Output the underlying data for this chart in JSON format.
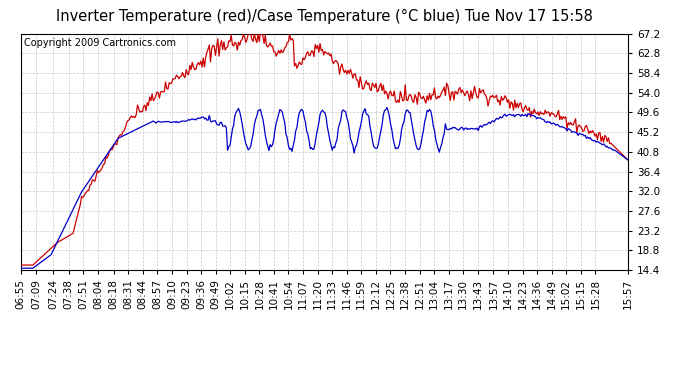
{
  "title": "Inverter Temperature (red)/Case Temperature (°C blue) Tue Nov 17 15:58",
  "copyright": "Copyright 2009 Cartronics.com",
  "ylim": [
    14.4,
    67.2
  ],
  "yticks": [
    14.4,
    18.8,
    23.2,
    27.6,
    32.0,
    36.4,
    40.8,
    45.2,
    49.6,
    54.0,
    58.4,
    62.8,
    67.2
  ],
  "background_color": "#ffffff",
  "grid_color": "#c8c8c8",
  "red_color": "#cc0000",
  "blue_color": "#0000cc",
  "title_fontsize": 10.5,
  "copyright_fontsize": 7,
  "tick_fontsize": 7.5,
  "xtick_labels": [
    "06:55",
    "07:09",
    "07:24",
    "07:38",
    "07:51",
    "08:04",
    "08:18",
    "08:31",
    "08:44",
    "08:57",
    "09:10",
    "09:23",
    "09:36",
    "09:49",
    "10:02",
    "10:15",
    "10:28",
    "10:41",
    "10:54",
    "11:07",
    "11:20",
    "11:33",
    "11:46",
    "11:59",
    "12:12",
    "12:25",
    "12:38",
    "12:51",
    "13:04",
    "13:17",
    "13:30",
    "13:43",
    "13:57",
    "14:10",
    "14:23",
    "14:36",
    "14:49",
    "15:02",
    "15:15",
    "15:28",
    "15:57"
  ]
}
